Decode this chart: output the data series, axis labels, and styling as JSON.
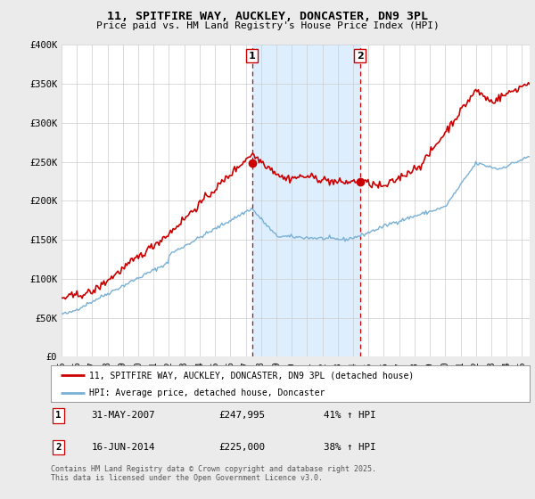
{
  "title": "11, SPITFIRE WAY, AUCKLEY, DONCASTER, DN9 3PL",
  "subtitle": "Price paid vs. HM Land Registry's House Price Index (HPI)",
  "xlim_start": 1995.0,
  "xlim_end": 2025.5,
  "ylim_min": 0,
  "ylim_max": 400000,
  "yticks": [
    0,
    50000,
    100000,
    150000,
    200000,
    250000,
    300000,
    350000,
    400000
  ],
  "ytick_labels": [
    "£0",
    "£50K",
    "£100K",
    "£150K",
    "£200K",
    "£250K",
    "£300K",
    "£350K",
    "£400K"
  ],
  "transaction1_date": 2007.41,
  "transaction1_price": 247995,
  "transaction2_date": 2014.45,
  "transaction2_price": 225000,
  "red_line_color": "#cc0000",
  "blue_line_color": "#7ab0d4",
  "shade_color": "#ddeeff",
  "vline_color": "#cc0000",
  "legend_label1": "11, SPITFIRE WAY, AUCKLEY, DONCASTER, DN9 3PL (detached house)",
  "legend_label2": "HPI: Average price, detached house, Doncaster",
  "annotation1_date": "31-MAY-2007",
  "annotation1_price": "£247,995",
  "annotation1_hpi": "41% ↑ HPI",
  "annotation2_date": "16-JUN-2014",
  "annotation2_price": "£225,000",
  "annotation2_hpi": "38% ↑ HPI",
  "footer": "Contains HM Land Registry data © Crown copyright and database right 2025.\nThis data is licensed under the Open Government Licence v3.0.",
  "background_color": "#ebebeb",
  "plot_bg_color": "#ffffff",
  "grid_color": "#cccccc"
}
